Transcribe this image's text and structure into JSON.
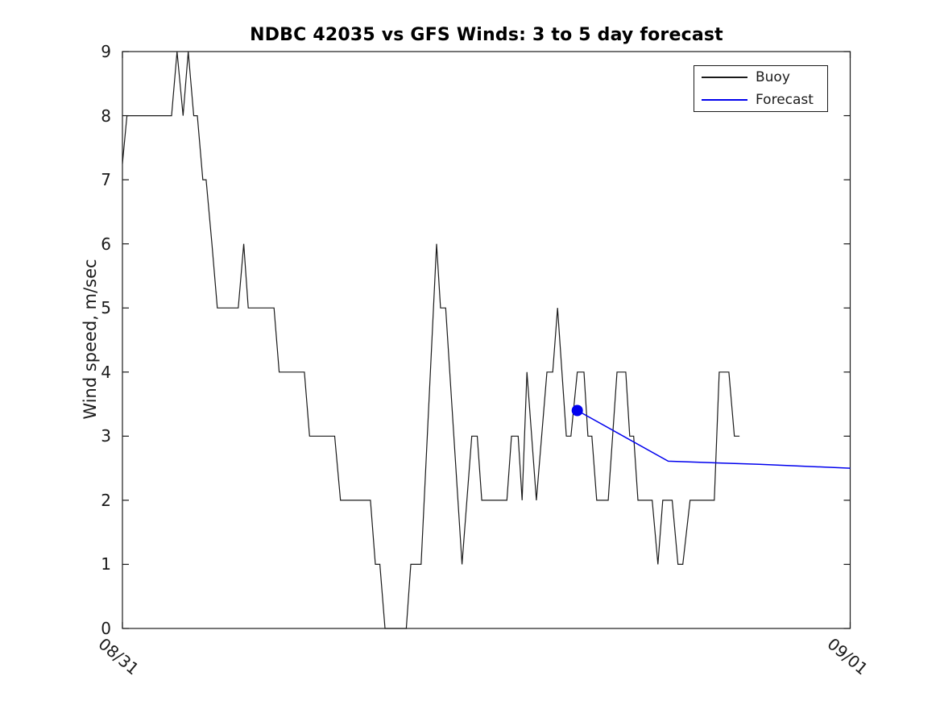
{
  "chart_data": {
    "type": "line",
    "title": "NDBC 42035 vs GFS Winds: 3 to 5 day forecast",
    "xlabel": "",
    "ylabel": "Wind speed, m/sec",
    "x_unit": "hours since 08/31 00:00",
    "xlim": [
      0,
      24
    ],
    "ylim": [
      0,
      9
    ],
    "grid": false,
    "x_axis": {
      "tick_hours": [
        0,
        24
      ],
      "ticklabels": [
        "08/31",
        "09/01"
      ],
      "label_rotation_deg": 40
    },
    "y_axis": {
      "ticks": [
        0,
        1,
        2,
        3,
        4,
        5,
        6,
        7,
        8,
        9
      ]
    },
    "legend": {
      "position": "top-right",
      "entries": [
        {
          "label": "Buoy",
          "color": "#1a1a1a"
        },
        {
          "label": "Forecast",
          "color": "#0000ee"
        }
      ]
    },
    "series": [
      {
        "name": "Buoy",
        "color": "#1a1a1a",
        "line_width": 1.2,
        "marker": "none",
        "points": [
          [
            0.0,
            7.25
          ],
          [
            0.15,
            8
          ],
          [
            1.62,
            8
          ],
          [
            1.8,
            9
          ],
          [
            2.0,
            8
          ],
          [
            2.17,
            9
          ],
          [
            2.35,
            8
          ],
          [
            2.47,
            8
          ],
          [
            2.65,
            7
          ],
          [
            2.76,
            7
          ],
          [
            2.95,
            6
          ],
          [
            3.13,
            5
          ],
          [
            3.82,
            5
          ],
          [
            4.0,
            6
          ],
          [
            4.15,
            5
          ],
          [
            5.0,
            5
          ],
          [
            5.17,
            4
          ],
          [
            6.0,
            4
          ],
          [
            6.17,
            3
          ],
          [
            7.0,
            3
          ],
          [
            7.19,
            2
          ],
          [
            8.18,
            2
          ],
          [
            8.34,
            1
          ],
          [
            8.49,
            1
          ],
          [
            8.66,
            0
          ],
          [
            9.36,
            0
          ],
          [
            9.51,
            1
          ],
          [
            9.85,
            1
          ],
          [
            10.36,
            6
          ],
          [
            10.49,
            5
          ],
          [
            10.66,
            5
          ],
          [
            11.2,
            1
          ],
          [
            11.52,
            3
          ],
          [
            11.7,
            3
          ],
          [
            11.85,
            2
          ],
          [
            12.68,
            2
          ],
          [
            12.83,
            3
          ],
          [
            13.05,
            3
          ],
          [
            13.18,
            2
          ],
          [
            13.34,
            4
          ],
          [
            13.65,
            2
          ],
          [
            14.0,
            4
          ],
          [
            14.19,
            4
          ],
          [
            14.35,
            5
          ],
          [
            14.64,
            3
          ],
          [
            14.79,
            3
          ],
          [
            15.0,
            4
          ],
          [
            15.22,
            4
          ],
          [
            15.35,
            3
          ],
          [
            15.48,
            3
          ],
          [
            15.64,
            2
          ],
          [
            16.02,
            2
          ],
          [
            16.31,
            4
          ],
          [
            16.6,
            4
          ],
          [
            16.73,
            3
          ],
          [
            16.86,
            3
          ],
          [
            17.0,
            2
          ],
          [
            17.47,
            2
          ],
          [
            17.66,
            1
          ],
          [
            17.82,
            2
          ],
          [
            18.13,
            2
          ],
          [
            18.32,
            1
          ],
          [
            18.48,
            1
          ],
          [
            18.72,
            2
          ],
          [
            19.52,
            2
          ],
          [
            19.68,
            4
          ],
          [
            20.0,
            4
          ],
          [
            20.18,
            3
          ],
          [
            20.35,
            3
          ]
        ]
      },
      {
        "name": "Forecast",
        "color": "#0000ee",
        "line_width": 1.5,
        "marker": "filled-circle-at-first-point",
        "marker_radius": 7,
        "points": [
          [
            15.0,
            3.4
          ],
          [
            18.0,
            2.61
          ],
          [
            21.0,
            2.56
          ],
          [
            24.0,
            2.5
          ]
        ]
      }
    ]
  }
}
